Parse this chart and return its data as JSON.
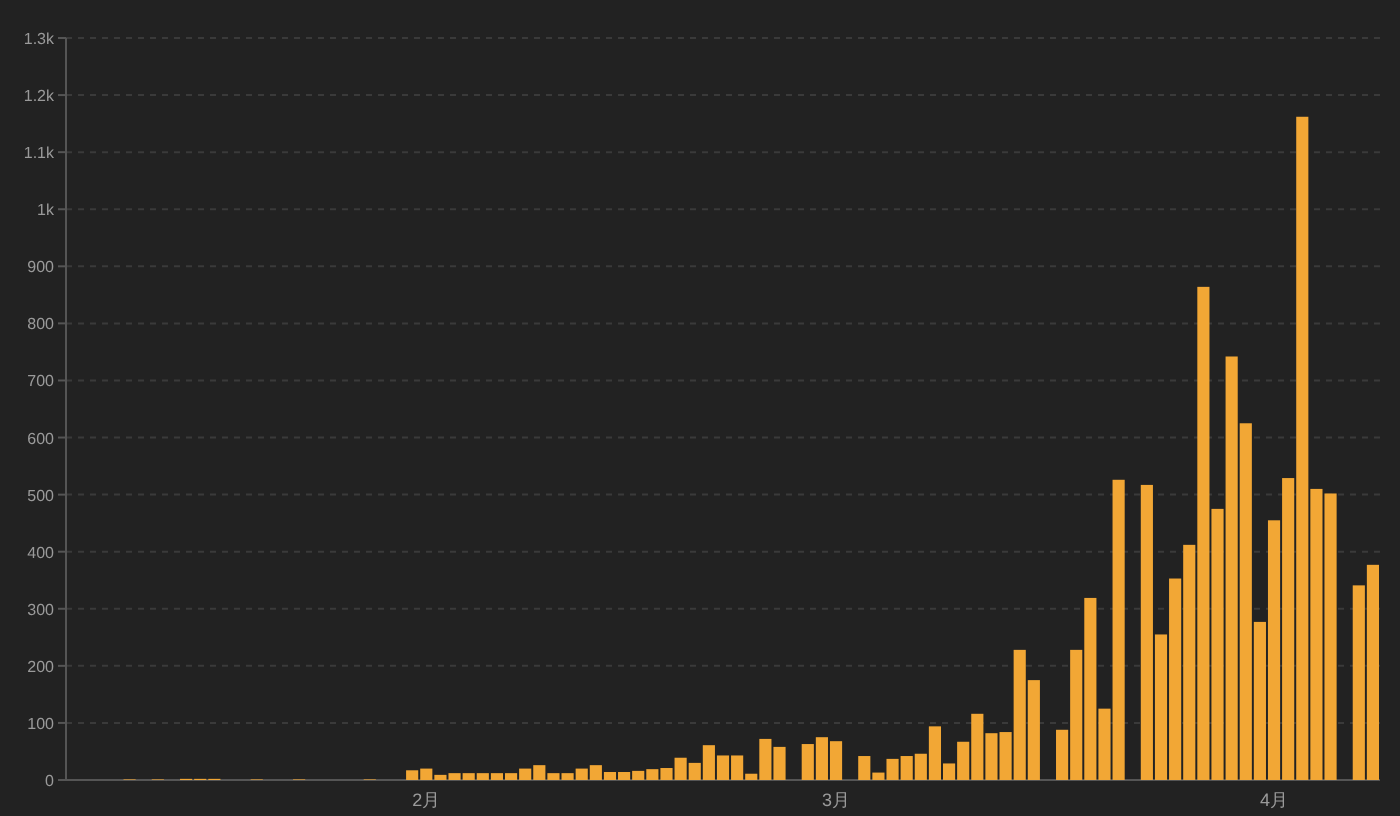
{
  "chart_data": {
    "type": "bar",
    "categories": [
      null,
      null,
      null,
      null,
      null,
      null,
      null,
      null,
      null,
      null,
      null,
      null,
      null,
      null,
      null,
      null,
      null,
      null,
      null,
      null,
      null,
      null,
      null,
      null,
      null,
      "2月",
      null,
      null,
      null,
      null,
      null,
      null,
      null,
      null,
      null,
      null,
      null,
      null,
      null,
      null,
      null,
      null,
      null,
      null,
      null,
      null,
      null,
      null,
      null,
      null,
      null,
      null,
      null,
      null,
      "3月",
      null,
      null,
      null,
      null,
      null,
      null,
      null,
      null,
      null,
      null,
      null,
      null,
      null,
      null,
      null,
      null,
      null,
      null,
      null,
      null,
      null,
      null,
      null,
      null,
      null,
      null,
      null,
      null,
      null,
      null,
      "4月",
      null,
      null,
      null,
      null,
      null,
      null,
      null
    ],
    "values": [
      0,
      0,
      0,
      0,
      1,
      0,
      1,
      0,
      2,
      2,
      2,
      0,
      0,
      1,
      0,
      0,
      1,
      0,
      0,
      0,
      0,
      1,
      0,
      0,
      17,
      20,
      9,
      12,
      12,
      12,
      12,
      12,
      20,
      26,
      12,
      12,
      20,
      26,
      14,
      14,
      16,
      19,
      21,
      39,
      30,
      61,
      43,
      43,
      11,
      72,
      58,
      0,
      63,
      75,
      68,
      0,
      42,
      13,
      37,
      42,
      46,
      94,
      29,
      67,
      116,
      82,
      84,
      228,
      175,
      0,
      88,
      228,
      319,
      125,
      526,
      0,
      517,
      255,
      353,
      412,
      864,
      475,
      742,
      625,
      277,
      455,
      529,
      1162,
      510,
      502,
      0,
      341,
      377
    ],
    "color": "#f2a735",
    "ylim": [
      0,
      1300
    ],
    "yticks": [
      0,
      100,
      200,
      300,
      400,
      500,
      600,
      700,
      800,
      900,
      {
        "value": 1000,
        "label": "1k"
      },
      {
        "value": 1100,
        "label": "1.1k"
      },
      {
        "value": 1200,
        "label": "1.2k"
      },
      {
        "value": 1300,
        "label": "1.3k"
      }
    ],
    "grid": "y"
  }
}
